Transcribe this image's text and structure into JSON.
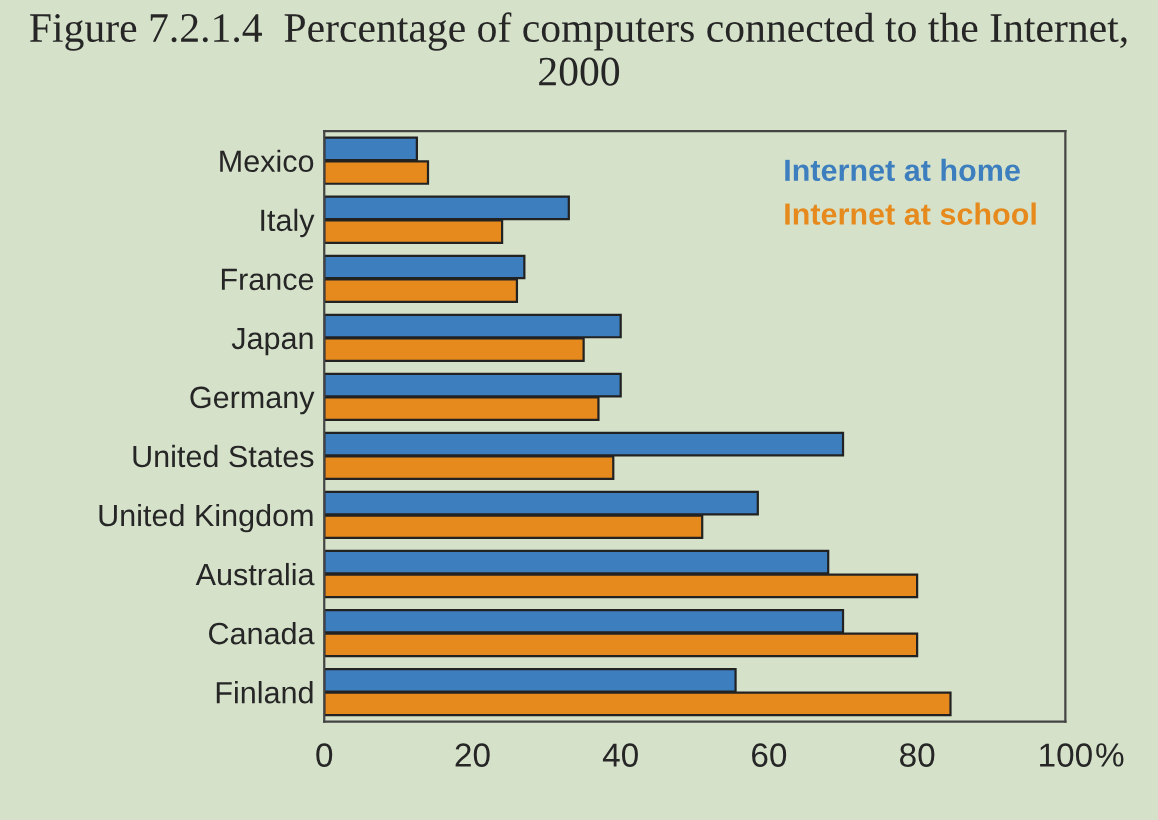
{
  "chart_data": {
    "type": "bar",
    "orientation": "horizontal",
    "title": "Figure 7.2.1.4  Percentage of computers connected to the Internet, 2000",
    "xlabel": "%",
    "categories": [
      "Mexico",
      "Italy",
      "France",
      "Japan",
      "Germany",
      "United States",
      "United Kingdom",
      "Australia",
      "Canada",
      "Finland"
    ],
    "series": [
      {
        "name": "Internet at home",
        "color": "#3d7ebf",
        "values": [
          12.5,
          33,
          27,
          40,
          40,
          70,
          58.5,
          68,
          70,
          55.5
        ]
      },
      {
        "name": "Internet at school",
        "color": "#e68a1e",
        "values": [
          14,
          24,
          26,
          35,
          37,
          39,
          51,
          80,
          80,
          84.5
        ]
      }
    ],
    "xlim": [
      0,
      100
    ],
    "xticks": [
      0,
      20,
      40,
      60,
      80,
      100
    ],
    "grid": false,
    "legend": "top right"
  }
}
